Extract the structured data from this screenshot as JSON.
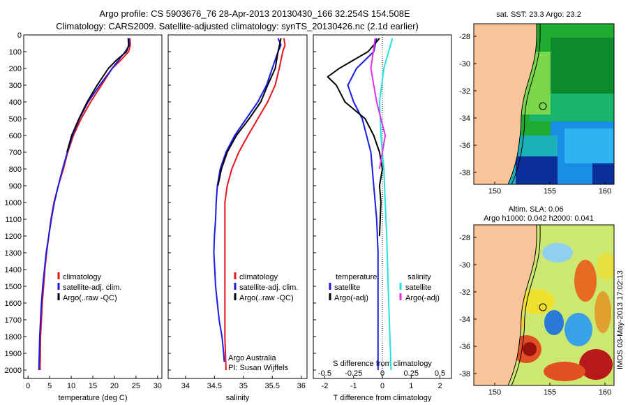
{
  "header": {
    "line1": "Argo profile: CS 5903676_76 28-Apr-2013 20130430_166 32.254S 154.508E",
    "line2": "Climatology: CARS2009. Satellite-adjusted climatology: synTS_20130426.nc (2.1d earlier)"
  },
  "side_stamp": "IMOS 03-May-2013 17:02:13",
  "colors": {
    "climatology": "#e8141a",
    "satellite": "#1a1ae6",
    "argo": "#000000",
    "sal_satellite": "#25e0e0",
    "sal_argo": "#e030e0",
    "land": "#f9c49a"
  },
  "chart_data": [
    {
      "type": "line",
      "xlabel": "temperature (deg C)",
      "ylabel": "",
      "xlim": [
        -1,
        31
      ],
      "ylim": [
        2050,
        0
      ],
      "xticks": [
        0,
        5,
        10,
        15,
        20,
        25,
        30
      ],
      "yticks": [
        0,
        100,
        200,
        300,
        400,
        500,
        600,
        700,
        800,
        900,
        1000,
        1100,
        1200,
        1300,
        1400,
        1500,
        1600,
        1700,
        1800,
        1900,
        2000
      ],
      "legend": [
        "climatology",
        "satellite-adj. clim.",
        "Argo(..raw -QC)"
      ],
      "legend_position": "lower-center",
      "series": [
        {
          "name": "climatology",
          "color": "#e8141a",
          "x": [
            23.6,
            23.7,
            23.3,
            21.5,
            19.5,
            17,
            14.5,
            12.3,
            10.5,
            9.2,
            8.2,
            7,
            6,
            5.3,
            4.8,
            4.3,
            3.9,
            3.6,
            3.3,
            3.1,
            2.9,
            2.8
          ],
          "y": [
            20,
            60,
            100,
            150,
            200,
            300,
            400,
            500,
            600,
            700,
            800,
            900,
            1000,
            1100,
            1200,
            1300,
            1400,
            1500,
            1600,
            1700,
            1800,
            2000
          ]
        },
        {
          "name": "satellite-adj. clim.",
          "color": "#1a1ae6",
          "x": [
            23.3,
            23.5,
            22.5,
            21,
            19.5,
            16.6,
            13.9,
            11.9,
            10.3,
            9.1,
            8,
            7,
            6.1,
            5.4,
            4.8,
            4.2,
            3.8,
            3.4,
            3.1,
            2.9,
            2.7,
            2.6,
            2.5
          ],
          "y": [
            20,
            60,
            100,
            150,
            200,
            300,
            400,
            500,
            600,
            700,
            800,
            900,
            1000,
            1100,
            1200,
            1300,
            1400,
            1500,
            1600,
            1700,
            1800,
            1900,
            2000
          ]
        },
        {
          "name": "Argo(..raw -QC)",
          "color": "#000000",
          "x": [
            23.2,
            23.3,
            22.8,
            20.5,
            18.6,
            16,
            13.7,
            11.8,
            10.1,
            9
          ],
          "y": [
            20,
            60,
            100,
            150,
            200,
            300,
            400,
            500,
            600,
            700
          ]
        }
      ]
    },
    {
      "type": "line",
      "xlabel": "salinity",
      "ylabel": "",
      "xlim": [
        33.7,
        36.1
      ],
      "ylim": [
        2050,
        0
      ],
      "xticks": [
        34,
        34.5,
        35,
        35.5,
        36
      ],
      "legend": [
        "climatology",
        "satellite-adj. clim.",
        "Argo(..raw -QC)"
      ],
      "legend_position": "lower-right",
      "annotations": [
        "Argo Australia",
        "PI: Susan Wijffels"
      ],
      "series": [
        {
          "name": "climatology",
          "color": "#e8141a",
          "x": [
            35.7,
            35.72,
            35.68,
            35.62,
            35.55,
            35.42,
            35.25,
            35.08,
            34.92,
            34.8,
            34.72,
            34.68,
            34.68,
            34.68,
            34.68,
            34.68,
            34.69,
            34.7
          ],
          "y": [
            20,
            60,
            100,
            200,
            300,
            400,
            500,
            600,
            700,
            800,
            900,
            1000,
            1200,
            1400,
            1600,
            1800,
            1900,
            2000
          ]
        },
        {
          "name": "satellite-adj. clim.",
          "color": "#1a1ae6",
          "x": [
            35.6,
            35.65,
            35.6,
            35.5,
            35.4,
            35.25,
            35.05,
            34.85,
            34.7,
            34.6,
            34.55,
            34.53,
            34.52,
            34.5,
            34.49,
            34.52,
            34.58,
            34.63,
            34.66,
            34.67
          ],
          "y": [
            20,
            60,
            100,
            200,
            300,
            400,
            500,
            600,
            700,
            800,
            900,
            1000,
            1100,
            1200,
            1300,
            1500,
            1700,
            1800,
            1900,
            1950
          ]
        },
        {
          "name": "Argo(..raw -QC)",
          "color": "#000000",
          "x": [
            35.65,
            35.6,
            35.55,
            35.42,
            35.3,
            35.1,
            34.88,
            34.72,
            34.62,
            34.56
          ],
          "y": [
            20,
            100,
            200,
            300,
            400,
            500,
            600,
            700,
            800,
            900
          ]
        }
      ]
    },
    {
      "type": "line",
      "xlabel": "T difference from climatology",
      "ylabel": "",
      "xlim": [
        -2.4,
        2.4
      ],
      "ylim": [
        2050,
        0
      ],
      "xticks": [
        -2,
        -1,
        0,
        1,
        2
      ],
      "top_axis_label": "S difference from climatology",
      "top_ticks": [
        "-0.5",
        "-0.25",
        "0",
        "0.25",
        "0.5"
      ],
      "legend_temperature": [
        "temperature",
        "satellite",
        "Argo(-adj)"
      ],
      "legend_salinity": [
        "salinity",
        "satellite",
        "Argo(-adj)"
      ],
      "series": [
        {
          "name": "temperature satellite",
          "color": "#1a1ae6",
          "x": [
            -0.2,
            -0.3,
            -0.9,
            -1.2,
            -1.0,
            -0.7,
            -0.4,
            -0.3,
            -0.2,
            -0.15,
            -0.15,
            -0.15,
            -0.15
          ],
          "y": [
            20,
            100,
            200,
            300,
            400,
            500,
            700,
            900,
            1100,
            1300,
            1500,
            1700,
            2000
          ]
        },
        {
          "name": "temperature Argo(-adj)",
          "color": "#000000",
          "x": [
            -0.1,
            -0.5,
            -1.5,
            -1.9,
            -1.6,
            -1.3,
            -0.6,
            -0.3,
            -0.1,
            0,
            -0.1,
            -0.05,
            -0.1
          ],
          "y": [
            20,
            100,
            200,
            250,
            300,
            400,
            500,
            600,
            700,
            800,
            900,
            1000,
            1200
          ]
        },
        {
          "name": "salinity satellite",
          "color": "#25e0e0",
          "x": [
            0.35,
            0.05,
            -0.1,
            -0.05,
            0.05,
            0.1,
            0.15,
            0.2,
            0.3
          ],
          "y": [
            20,
            200,
            400,
            600,
            800,
            1000,
            1200,
            1500,
            2000
          ]
        },
        {
          "name": "salinity Argo(-adj)",
          "color": "#e030e0",
          "x": [
            -0.25,
            -0.4,
            -0.2,
            0.1,
            -0.1
          ],
          "y": [
            20,
            200,
            400,
            600,
            800
          ]
        }
      ]
    },
    {
      "type": "heatmap",
      "title": "sat. SST: 23.3  Argo: 23.2",
      "xticks": [
        "150",
        "155",
        "160"
      ],
      "yticks": [
        "-28",
        "-30",
        "-32",
        "-34",
        "-36",
        "-38"
      ]
    },
    {
      "type": "heatmap",
      "title_line1": "Altim. SLA: 0.06",
      "title_line2": "Argo h1000: 0.042  h2000: 0.041",
      "xticks": [
        "150",
        "155",
        "160"
      ],
      "yticks": [
        "-28",
        "-30",
        "-32",
        "-34",
        "-36",
        "-38"
      ]
    }
  ]
}
